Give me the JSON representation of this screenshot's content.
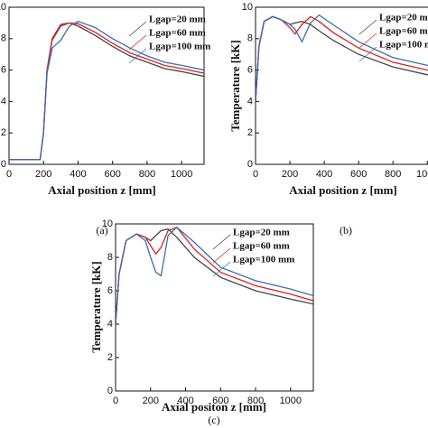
{
  "chart_data": [
    {
      "type": "line",
      "caption": "(a)",
      "xlabel": "Axial position z [mm]",
      "x": [
        0,
        100,
        180,
        200,
        220,
        250,
        300,
        350,
        400,
        500,
        600,
        700,
        800,
        900,
        1000,
        1130
      ],
      "series": [
        {
          "name": "Lgap=20 mm",
          "color": "#454545",
          "values": [
            0.3,
            0.3,
            0.3,
            2,
            6,
            8,
            8.9,
            9.0,
            8.8,
            8.2,
            7.5,
            6.9,
            6.5,
            6.1,
            5.9,
            5.6
          ]
        },
        {
          "name": "Lgap=60 mm",
          "color": "#e0201c",
          "values": [
            0.3,
            0.3,
            0.3,
            2,
            6,
            7.9,
            8.8,
            9.0,
            8.95,
            8.4,
            7.7,
            7.1,
            6.7,
            6.3,
            6.1,
            5.8
          ]
        },
        {
          "name": "Lgap=100 mm",
          "color": "#3b6db3",
          "values": [
            0.3,
            0.3,
            0.3,
            2,
            5.8,
            7.4,
            7.9,
            8.8,
            9.1,
            8.7,
            8.0,
            7.4,
            6.9,
            6.5,
            6.3,
            6.0
          ]
        }
      ],
      "xlim": [
        0,
        1130
      ],
      "xticks": [
        0,
        200,
        400,
        600,
        800,
        1000
      ],
      "ylim": [
        0,
        10
      ],
      "yticks": [
        0,
        2,
        4,
        6,
        8,
        10
      ],
      "grid": false,
      "legend": "upper right"
    },
    {
      "type": "line",
      "caption": "(b)",
      "xlabel": "Axial position z [mm]",
      "ylabel": "Temperature [kK]",
      "x": [
        0,
        20,
        50,
        100,
        150,
        200,
        230,
        270,
        320,
        370,
        450,
        600,
        800,
        1000,
        1130
      ],
      "series": [
        {
          "name": "Lgap=20 mm",
          "color": "#454545",
          "values": [
            4,
            7.5,
            9.1,
            9.4,
            9.2,
            8.9,
            9.0,
            9.1,
            8.9,
            8.5,
            7.9,
            7.0,
            6.2,
            5.7,
            5.5
          ]
        },
        {
          "name": "Lgap=60 mm",
          "color": "#e0201c",
          "values": [
            4,
            7.5,
            9.1,
            9.4,
            9.2,
            8.7,
            8.3,
            8.9,
            9.4,
            9.1,
            8.4,
            7.4,
            6.5,
            6.0,
            5.8
          ]
        },
        {
          "name": "Lgap=100 mm",
          "color": "#3b6db3",
          "values": [
            4,
            7.5,
            9.1,
            9.4,
            9.2,
            8.9,
            8.6,
            7.8,
            9.0,
            9.5,
            8.9,
            7.8,
            6.8,
            6.3,
            6.1
          ]
        }
      ],
      "xlim": [
        0,
        1130
      ],
      "xticks": [
        0,
        200,
        400,
        600,
        800,
        1000
      ],
      "ylim": [
        0,
        10
      ],
      "yticks": [
        0,
        2,
        4,
        6,
        8,
        10
      ],
      "grid": false,
      "legend": "upper right"
    },
    {
      "type": "line",
      "caption": "(c)",
      "xlabel": "Axial positon z [mm]",
      "ylabel": "Temperature [kK]",
      "x": [
        0,
        20,
        60,
        120,
        170,
        200,
        230,
        260,
        300,
        350,
        450,
        600,
        800,
        1000,
        1130
      ],
      "series": [
        {
          "name": "Lgap=20 mm",
          "color": "#454545",
          "values": [
            4,
            7,
            9,
            9.4,
            9.2,
            9.0,
            9.3,
            9.6,
            9.7,
            9.2,
            8.0,
            6.8,
            6.0,
            5.5,
            5.2
          ]
        },
        {
          "name": "Lgap=60 mm",
          "color": "#e0201c",
          "values": [
            4,
            7,
            9,
            9.4,
            9.2,
            8.7,
            8.2,
            8.6,
            9.6,
            9.8,
            8.5,
            7.1,
            6.3,
            5.8,
            5.4
          ]
        },
        {
          "name": "Lgap=100 mm",
          "color": "#3b6db3",
          "values": [
            4,
            7,
            9,
            9.4,
            9.0,
            8.0,
            7.1,
            6.9,
            9.3,
            9.8,
            8.9,
            7.4,
            6.6,
            6.1,
            5.7
          ]
        }
      ],
      "xlim": [
        0,
        1130
      ],
      "xticks": [
        0,
        200,
        400,
        600,
        800,
        1000
      ],
      "ylim": [
        0,
        10
      ],
      "yticks": [
        0,
        2,
        4,
        6,
        8,
        10
      ],
      "grid": false,
      "legend": "upper right"
    }
  ]
}
